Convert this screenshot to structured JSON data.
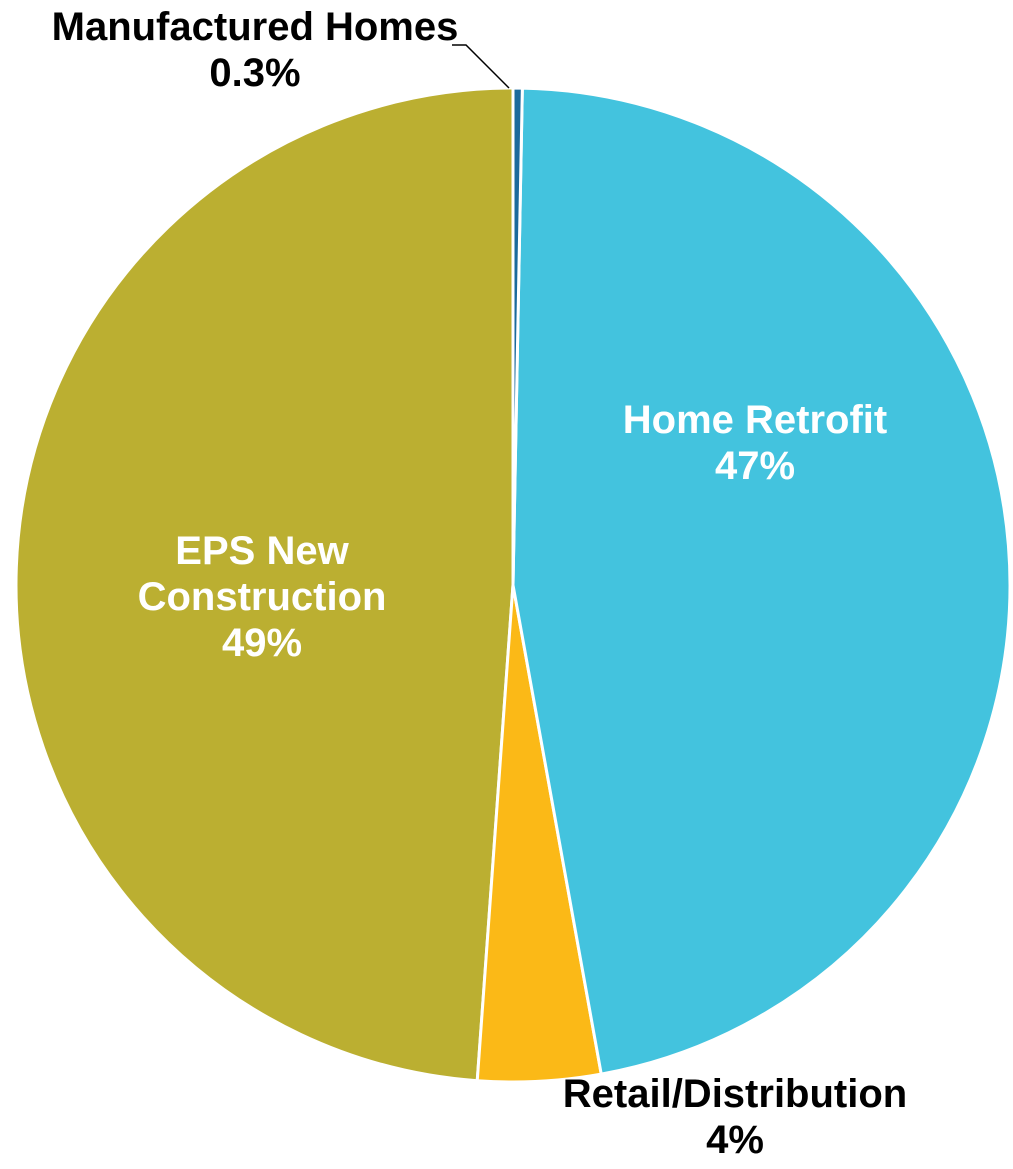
{
  "chart_data": {
    "type": "pie",
    "categories": [
      "Manufactured Homes",
      "Home Retrofit",
      "Retail/Distribution",
      "EPS New Construction"
    ],
    "values": [
      0.3,
      47,
      4,
      49
    ],
    "value_labels": [
      "0.3%",
      "47%",
      "4%",
      "49%"
    ],
    "colors": [
      "#1b6a9c",
      "#43c3de",
      "#fbb917",
      "#bbaf31"
    ]
  }
}
